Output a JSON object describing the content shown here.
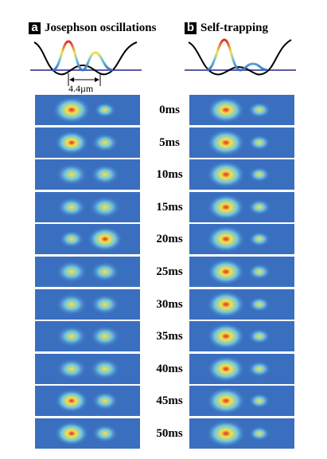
{
  "panels": [
    {
      "letter": "a",
      "title": "Josephson oscillations"
    },
    {
      "letter": "b",
      "title": "Self-trapping"
    }
  ],
  "spacing_label": "4.4µm",
  "time_labels": [
    "0ms",
    "5ms",
    "10ms",
    "15ms",
    "20ms",
    "25ms",
    "30ms",
    "35ms",
    "40ms",
    "45ms",
    "50ms"
  ],
  "josephson_fraction_left": [
    0.78,
    0.62,
    0.55,
    0.45,
    0.32,
    0.55,
    0.55,
    0.5,
    0.5,
    0.62,
    0.65
  ],
  "self_trapping_fraction_left": [
    0.75,
    0.78,
    0.8,
    0.76,
    0.8,
    0.76,
    0.8,
    0.78,
    0.76,
    0.8,
    0.82
  ],
  "colors": {
    "background_blue": "#3a6fc0",
    "mid_cyan": "#6fc4e0",
    "high_yellow": "#f2e24a",
    "peak_red": "#e0282a",
    "potential_line": "#000000",
    "baseline": "#5a5aa8"
  }
}
